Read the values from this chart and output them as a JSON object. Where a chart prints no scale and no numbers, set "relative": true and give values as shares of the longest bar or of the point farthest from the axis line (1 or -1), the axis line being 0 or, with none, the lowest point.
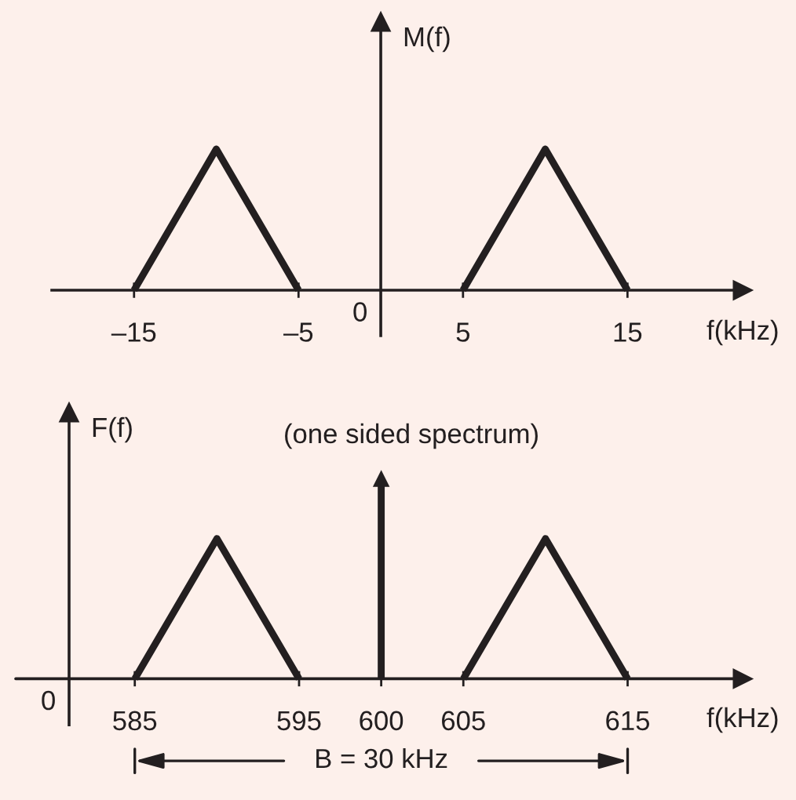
{
  "chart_data": [
    {
      "type": "line",
      "relative": true,
      "xlabel": "f(kHz)",
      "ylabel": "M(f)",
      "xlim": [
        -20,
        22
      ],
      "xticks": [
        {
          "value": -15,
          "label": "–15"
        },
        {
          "value": -5,
          "label": "–5"
        },
        5,
        15
      ],
      "annotations": [
        "0"
      ],
      "series": [
        {
          "color": "#231f20",
          "x": [
            -15,
            -10,
            -5
          ],
          "values": [
            0,
            1,
            0
          ]
        },
        {
          "color": "#231f20",
          "x": [
            5,
            10,
            15
          ],
          "values": [
            0,
            1,
            0
          ]
        }
      ]
    },
    {
      "type": "line",
      "relative": true,
      "title": "(one sided spectrum)",
      "xlabel": "f(kHz)",
      "ylabel": "F(f)",
      "xlim": [
        581,
        622
      ],
      "xticks": [
        585,
        595,
        600,
        605,
        615
      ],
      "annotations": [
        "0",
        "B = 30 kHz"
      ],
      "series": [
        {
          "color": "#231f20",
          "x": [
            585,
            590,
            595
          ],
          "values": [
            0,
            0.7,
            0
          ]
        },
        {
          "type": "lollipop",
          "marker": "triangle",
          "color": "#231f20",
          "x": [
            600
          ],
          "values": [
            1
          ]
        },
        {
          "color": "#231f20",
          "x": [
            605,
            610,
            615
          ],
          "values": [
            0,
            0.7,
            0
          ]
        }
      ]
    }
  ]
}
